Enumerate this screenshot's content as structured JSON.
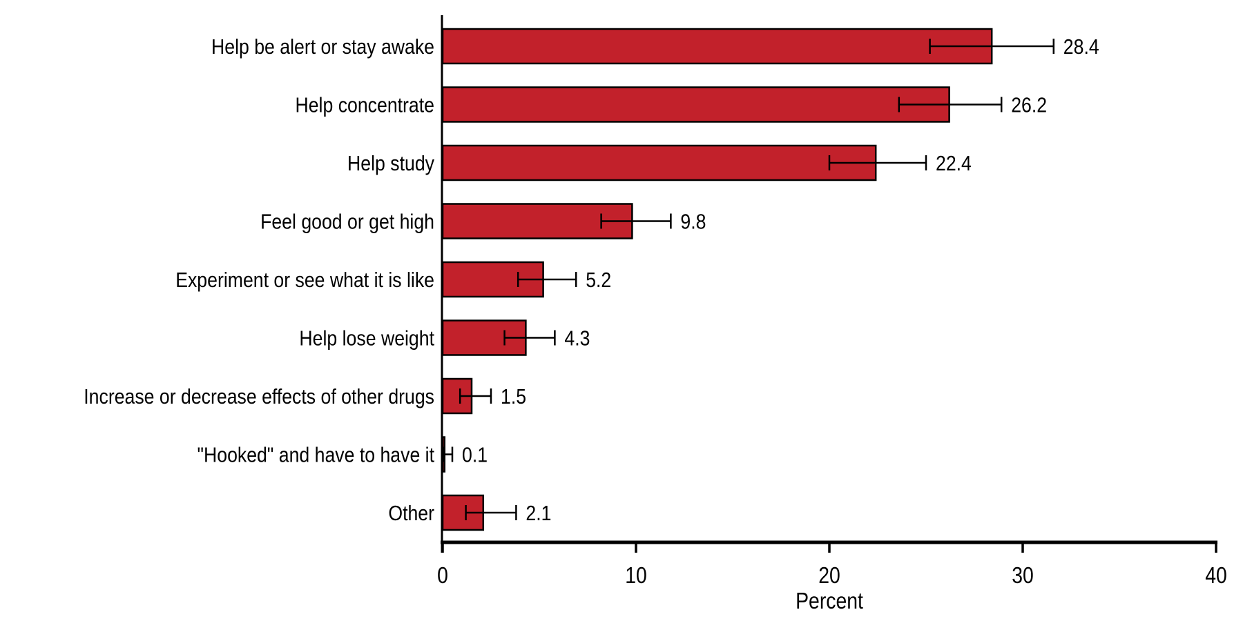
{
  "chart_data": {
    "type": "bar",
    "orientation": "horizontal",
    "title": "",
    "xlabel": "Percent",
    "ylabel": "",
    "xlim": [
      0,
      40
    ],
    "xticks": [
      0,
      10,
      20,
      30,
      40
    ],
    "grid": false,
    "legend": false,
    "bar_color": "#C2212B",
    "bar_border_color": "#000000",
    "error_bar_color": "#000000",
    "text_color": "#000000",
    "background_color": "#FFFFFF",
    "categories": [
      "Help be alert or stay awake",
      "Help concentrate",
      "Help study",
      "Feel good or get high",
      "Experiment or see what it is like",
      "Help lose weight",
      "Increase or decrease effects of other drugs",
      "\"Hooked\" and have to have it",
      "Other"
    ],
    "values": [
      28.4,
      26.2,
      22.4,
      9.8,
      5.2,
      4.3,
      1.5,
      0.1,
      2.1
    ],
    "value_labels": [
      "28.4",
      "26.2",
      "22.4",
      "9.8",
      "5.2",
      "4.3",
      "1.5",
      "0.1",
      "2.1"
    ],
    "error_low": [
      25.2,
      23.6,
      20.0,
      8.2,
      3.9,
      3.2,
      0.9,
      0.05,
      1.2
    ],
    "error_high": [
      31.6,
      28.9,
      25.0,
      11.8,
      6.9,
      5.8,
      2.5,
      0.5,
      3.8
    ]
  }
}
